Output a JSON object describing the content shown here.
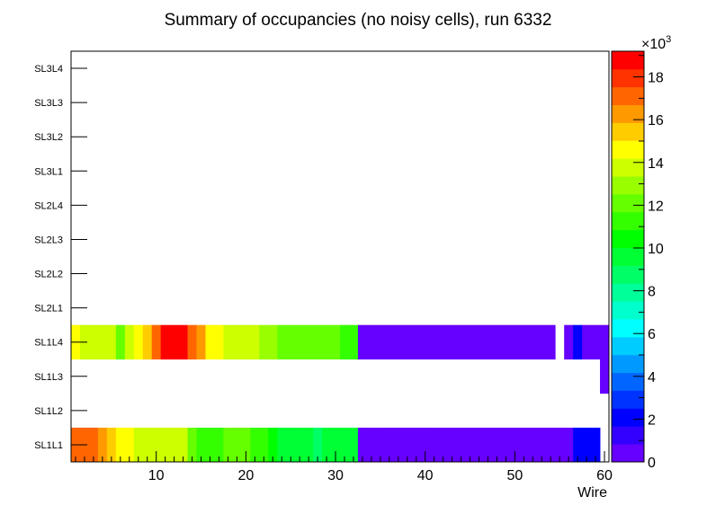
{
  "chart_data": {
    "type": "heatmap",
    "title": "Summary of occupancies (no noisy cells), run 6332",
    "xlabel": "Wire",
    "ylabel": "",
    "xlim": [
      0.5,
      60.5
    ],
    "x_ticks": [
      10,
      20,
      30,
      40,
      50,
      60
    ],
    "y_categories": [
      "SL1L1",
      "SL1L2",
      "SL1L3",
      "SL1L4",
      "SL2L1",
      "SL2L2",
      "SL2L3",
      "SL2L4",
      "SL3L1",
      "SL3L2",
      "SL3L3",
      "SL3L4"
    ],
    "colorbar": {
      "min": 0,
      "max": 19200,
      "multiplier_label": "×10",
      "multiplier_exponent": "3",
      "tick_values": [
        0,
        2000,
        4000,
        6000,
        8000,
        10000,
        12000,
        14000,
        16000,
        18000
      ],
      "tick_labels": [
        "0",
        "2",
        "4",
        "6",
        "8",
        "10",
        "12",
        "14",
        "16",
        "18"
      ],
      "palette": [
        "#6600ff",
        "#3300ff",
        "#0000ff",
        "#0033ff",
        "#0066ff",
        "#0099ff",
        "#00ccff",
        "#00ffff",
        "#00ffcc",
        "#00ff99",
        "#00ff66",
        "#00ff33",
        "#00ff00",
        "#33ff00",
        "#66ff00",
        "#99ff00",
        "#ccff00",
        "#ffff00",
        "#ffcc00",
        "#ff9900",
        "#ff6600",
        "#ff3300",
        "#ff0000"
      ]
    },
    "rows": [
      {
        "layer": "SL1L1",
        "values": [
          17500,
          17500,
          17500,
          16500,
          15500,
          14500,
          14500,
          14000,
          14000,
          14000,
          14000,
          14000,
          14000,
          12500,
          11000,
          11000,
          11000,
          12000,
          12000,
          12000,
          11000,
          11000,
          10500,
          9500,
          9500,
          9500,
          9500,
          8500,
          9500,
          9500,
          9500,
          9500,
          800,
          800,
          800,
          800,
          800,
          800,
          800,
          800,
          800,
          800,
          800,
          800,
          800,
          800,
          800,
          800,
          800,
          800,
          800,
          800,
          800,
          800,
          800,
          800,
          1800,
          1800,
          1800,
          0
        ]
      },
      {
        "layer": "SL1L2",
        "values": []
      },
      {
        "layer": "SL1L3",
        "values": [
          0,
          0,
          0,
          0,
          0,
          0,
          0,
          0,
          0,
          0,
          0,
          0,
          0,
          0,
          0,
          0,
          0,
          0,
          0,
          0,
          0,
          0,
          0,
          0,
          0,
          0,
          0,
          0,
          0,
          0,
          0,
          0,
          0,
          0,
          0,
          0,
          0,
          0,
          0,
          0,
          0,
          0,
          0,
          0,
          0,
          0,
          0,
          0,
          0,
          0,
          0,
          0,
          0,
          0,
          0,
          0,
          0,
          0,
          0,
          800
        ]
      },
      {
        "layer": "SL1L4",
        "values": [
          14500,
          13500,
          13500,
          13500,
          13500,
          12500,
          13500,
          14500,
          15500,
          17000,
          18500,
          18500,
          18500,
          17000,
          16000,
          14500,
          14500,
          14000,
          14000,
          14000,
          14000,
          13000,
          13000,
          12500,
          12500,
          12500,
          12500,
          12500,
          12500,
          12500,
          11000,
          11000,
          800,
          800,
          800,
          800,
          800,
          800,
          800,
          800,
          800,
          800,
          800,
          800,
          800,
          800,
          800,
          800,
          800,
          800,
          800,
          800,
          800,
          800,
          0,
          800,
          1800,
          800,
          800,
          800
        ]
      },
      {
        "layer": "SL2L1",
        "values": []
      },
      {
        "layer": "SL2L2",
        "values": []
      },
      {
        "layer": "SL2L3",
        "values": []
      },
      {
        "layer": "SL2L4",
        "values": []
      },
      {
        "layer": "SL3L1",
        "values": []
      },
      {
        "layer": "SL3L2",
        "values": []
      },
      {
        "layer": "SL3L3",
        "values": []
      },
      {
        "layer": "SL3L4",
        "values": []
      }
    ]
  }
}
